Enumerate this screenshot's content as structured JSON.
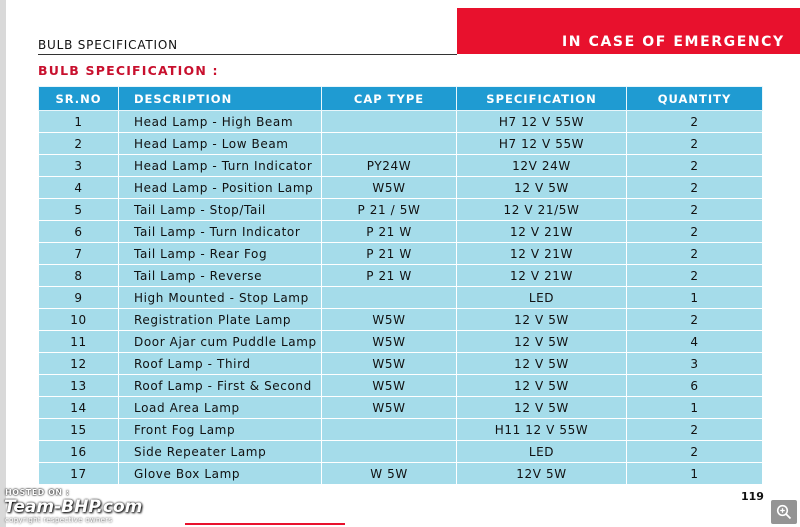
{
  "header": {
    "left_title": "BULB SPECIFICATION",
    "right_banner": "IN CASE OF EMERGENCY",
    "section_title": "BULB SPECIFICATION :"
  },
  "table": {
    "columns": [
      "SR.NO",
      "DESCRIPTION",
      "CAP TYPE",
      "SPECIFICATION",
      "QUANTITY"
    ],
    "rows": [
      {
        "sr": "1",
        "description": "Head Lamp - High Beam",
        "cap": "",
        "spec": "H7 12 V 55W",
        "qty": "2"
      },
      {
        "sr": "2",
        "description": "Head Lamp - Low Beam",
        "cap": "",
        "spec": "H7 12 V 55W",
        "qty": "2"
      },
      {
        "sr": "3",
        "description": "Head Lamp - Turn Indicator",
        "cap": "PY24W",
        "spec": "12V  24W",
        "qty": "2"
      },
      {
        "sr": "4",
        "description": "Head Lamp - Position Lamp",
        "cap": "W5W",
        "spec": "12 V  5W",
        "qty": "2"
      },
      {
        "sr": "5",
        "description": "Tail Lamp - Stop/Tail",
        "cap": "P 21 / 5W",
        "spec": "12 V  21/5W",
        "qty": "2"
      },
      {
        "sr": "6",
        "description": "Tail Lamp - Turn Indicator",
        "cap": "P 21 W",
        "spec": "12 V  21W",
        "qty": "2"
      },
      {
        "sr": "7",
        "description": "Tail Lamp - Rear Fog",
        "cap": "P 21 W",
        "spec": "12 V  21W",
        "qty": "2"
      },
      {
        "sr": "8",
        "description": "Tail Lamp - Reverse",
        "cap": "P 21 W",
        "spec": "12 V  21W",
        "qty": "2"
      },
      {
        "sr": "9",
        "description": "High Mounted - Stop Lamp",
        "cap": "",
        "spec": "LED",
        "qty": "1"
      },
      {
        "sr": "10",
        "description": "Registration Plate Lamp",
        "cap": "W5W",
        "spec": "12 V  5W",
        "qty": "2"
      },
      {
        "sr": "11",
        "description": "Door Ajar cum Puddle Lamp",
        "cap": "W5W",
        "spec": "12 V  5W",
        "qty": "4"
      },
      {
        "sr": "12",
        "description": "Roof Lamp - Third",
        "cap": "W5W",
        "spec": "12 V  5W",
        "qty": "3"
      },
      {
        "sr": "13",
        "description": "Roof Lamp - First & Second",
        "cap": "W5W",
        "spec": "12 V  5W",
        "qty": "6"
      },
      {
        "sr": "14",
        "description": "Load Area Lamp",
        "cap": "W5W",
        "spec": "12 V  5W",
        "qty": "1"
      },
      {
        "sr": "15",
        "description": "Front Fog Lamp",
        "cap": "",
        "spec": "H11 12 V 55W",
        "qty": "2"
      },
      {
        "sr": "16",
        "description": "Side Repeater Lamp",
        "cap": "",
        "spec": "LED",
        "qty": "2"
      },
      {
        "sr": "17",
        "description": "Glove Box Lamp",
        "cap": "W 5W",
        "spec": "12V  5W",
        "qty": "1"
      }
    ]
  },
  "page_number": "119",
  "watermark": {
    "hosted_on": "HOSTED ON :",
    "logo": "Team-BHP.com",
    "copyright": "copyright respective owners"
  },
  "zoom": {
    "icon": "zoom-in-icon"
  },
  "colors": {
    "accent_red": "#e8112d",
    "header_blue": "#1f9bd2",
    "row_blue": "#a5dcea"
  }
}
